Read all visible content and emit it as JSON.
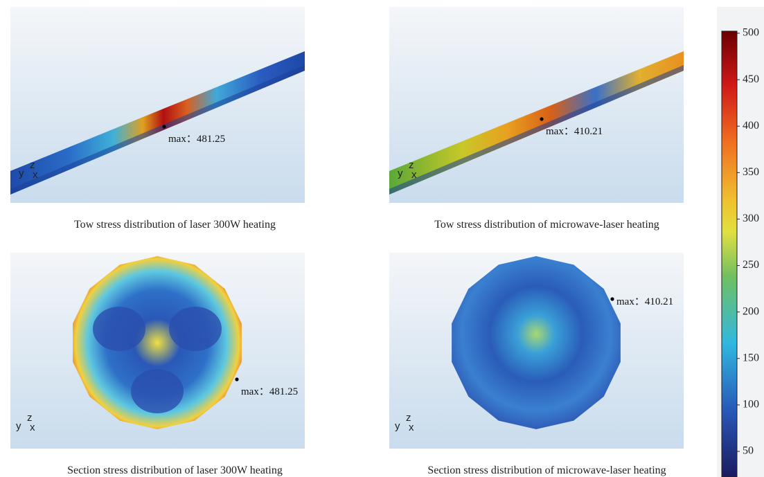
{
  "panels": [
    {
      "caption": "Tow stress distribution of laser 300W heating",
      "annotation": "max：481.25",
      "axes": [
        "y",
        "z",
        "x"
      ]
    },
    {
      "caption": "Tow stress distribution of microwave-laser heating",
      "annotation": "max：410.21",
      "axes": [
        "y",
        "z",
        "x"
      ]
    },
    {
      "caption": "Section stress distribution of laser 300W heating",
      "annotation": "max：481.25",
      "axes": [
        "y",
        "z",
        "x"
      ]
    },
    {
      "caption": "Section stress distribution of microwave-laser heating",
      "annotation": "max：410.21",
      "axes": [
        "y",
        "z",
        "x"
      ]
    }
  ],
  "colorbar": {
    "ticks": [
      500,
      450,
      400,
      350,
      300,
      250,
      200,
      150,
      100,
      50
    ]
  }
}
